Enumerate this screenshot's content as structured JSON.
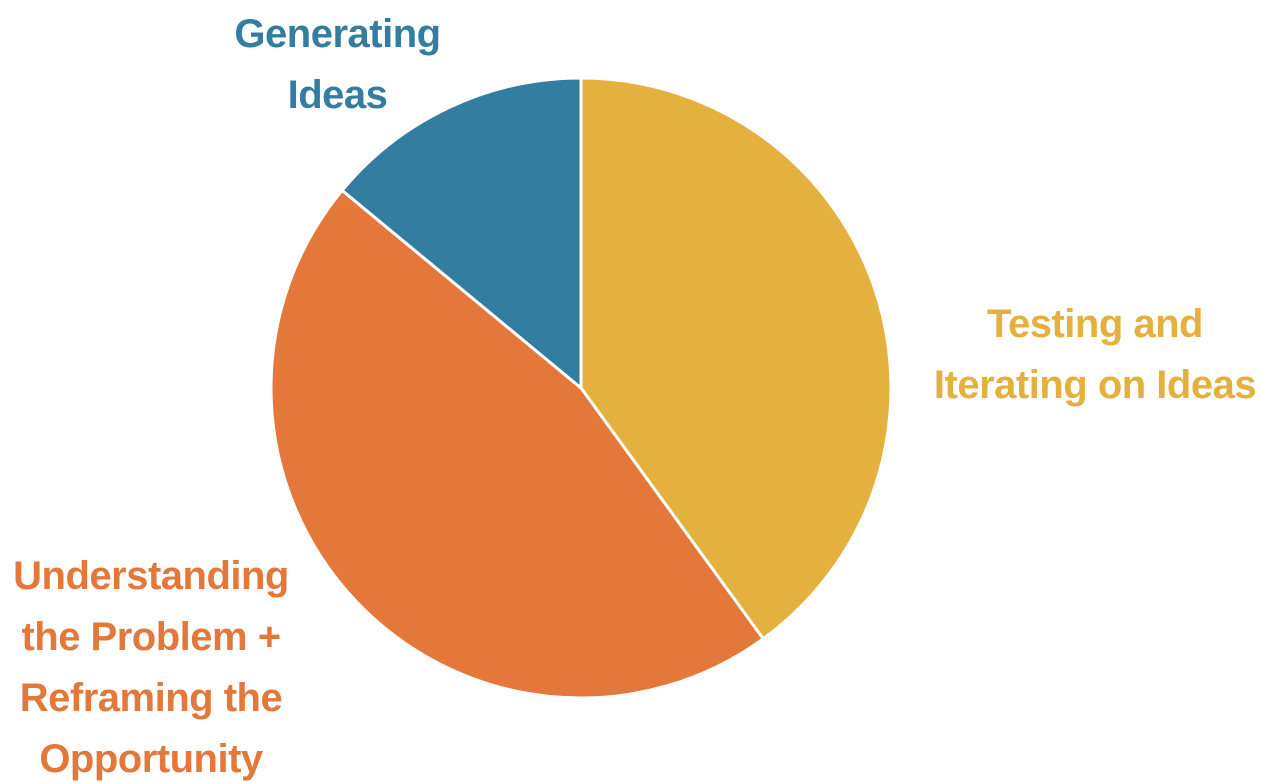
{
  "chart_data": {
    "type": "pie",
    "slices": [
      {
        "label_lines": [
          "Testing and",
          "Iterating on Ideas"
        ],
        "value": 40,
        "color": "#E4B03E"
      },
      {
        "label_lines": [
          "Understanding",
          "the Problem +",
          "Reframing the",
          "Opportunity"
        ],
        "value": 46,
        "color": "#E4773A"
      },
      {
        "label_lines": [
          "Generating",
          "Ideas"
        ],
        "value": 14,
        "color": "#337DA1"
      }
    ],
    "start": "12 o'clock, clockwise",
    "legend": "none",
    "separator_color": "#ffffff"
  }
}
